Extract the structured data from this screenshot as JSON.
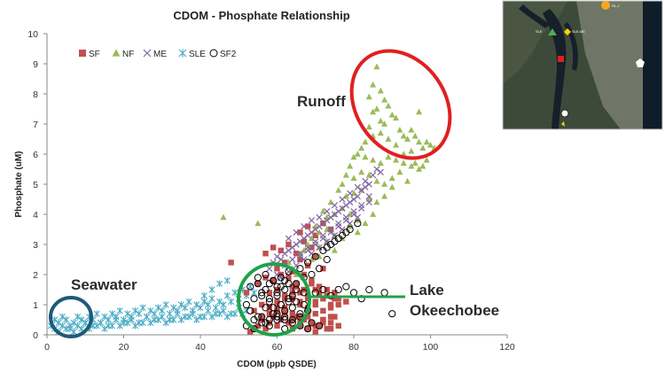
{
  "chart_data": {
    "type": "scatter",
    "title": "CDOM - Phosphate Relationship",
    "xlabel": "CDOM (ppb QSDE)",
    "ylabel": "Phosphate (uM)",
    "xlim": [
      0,
      120
    ],
    "ylim": [
      0,
      10
    ],
    "xticks": [
      "0",
      "20",
      "40",
      "60",
      "80",
      "100",
      "120"
    ],
    "yticks": [
      "0",
      "1",
      "2",
      "3",
      "4",
      "5",
      "6",
      "7",
      "8",
      "9",
      "10"
    ],
    "grid": false,
    "legend_position": "top-left",
    "colors": {
      "SF": "#c0504d",
      "NF": "#9bbb59",
      "ME": "#8064a2",
      "SLE": "#4bacc6",
      "SF2": "#000000",
      "seawater_ellipse": "#1f5a78",
      "lake_ellipse": "#1fa34a",
      "runoff_ellipse": "#e02020",
      "lake_line": "#1fa34a"
    },
    "series": [
      {
        "name": "SF",
        "marker": "square",
        "x": [
          53,
          54,
          55,
          56,
          57,
          58,
          59,
          60,
          61,
          62,
          63,
          64,
          65,
          66,
          67,
          68,
          69,
          70,
          71,
          72,
          73,
          74,
          75,
          76,
          54,
          56,
          58,
          60,
          62,
          64,
          66,
          68,
          70,
          72,
          58,
          60,
          62,
          64,
          66,
          68,
          70,
          74,
          76,
          78,
          55,
          57,
          59,
          61,
          63,
          65,
          67,
          69,
          71,
          73,
          75,
          60,
          62,
          64,
          66,
          68,
          70,
          72,
          56,
          58,
          60,
          62,
          64,
          66,
          68,
          70,
          72,
          74,
          48,
          52,
          57,
          59,
          61,
          63,
          65,
          67,
          69,
          66,
          68,
          70,
          72,
          74,
          60,
          62,
          64,
          66,
          68,
          70,
          72,
          74,
          76,
          64,
          66,
          68,
          70,
          72,
          74,
          65,
          67,
          69,
          71,
          73,
          75
        ],
        "y": [
          0.1,
          0.2,
          0.3,
          0.5,
          0.2,
          0.4,
          0.6,
          0.3,
          0.5,
          0.7,
          0.4,
          0.2,
          0.6,
          0.3,
          0.5,
          0.2,
          0.4,
          0.1,
          0.3,
          0.5,
          0.2,
          0.4,
          0.6,
          0.3,
          0.8,
          1.0,
          0.9,
          1.1,
          0.8,
          1.2,
          1.0,
          0.9,
          1.1,
          0.8,
          1.4,
          1.5,
          1.3,
          1.6,
          1.4,
          1.2,
          1.5,
          1.0,
          1.2,
          1.1,
          1.7,
          1.9,
          1.8,
          2.0,
          1.9,
          1.7,
          2.0,
          1.8,
          1.6,
          1.5,
          1.4,
          2.2,
          2.4,
          2.1,
          2.5,
          2.3,
          2.6,
          2.2,
          0.6,
          0.7,
          0.8,
          0.9,
          0.7,
          0.6,
          0.8,
          0.7,
          0.5,
          0.6,
          2.4,
          1.4,
          2.7,
          2.9,
          2.8,
          3.0,
          2.7,
          3.1,
          2.9,
          3.4,
          3.6,
          3.3,
          3.7,
          3.5,
          0.9,
          1.2,
          1.4,
          1.1,
          1.3,
          1.0,
          1.2,
          0.9,
          1.0,
          0.5,
          0.4,
          0.6,
          0.3,
          0.4,
          0.2,
          1.6,
          1.5,
          1.7,
          1.4,
          1.3,
          1.2
        ]
      },
      {
        "name": "NF",
        "marker": "triangle",
        "x": [
          86,
          85,
          87,
          84,
          88,
          89,
          86,
          90,
          91,
          88,
          85,
          87,
          84,
          92,
          93,
          94,
          95,
          96,
          97,
          98,
          99,
          100,
          101,
          97,
          95,
          93,
          91,
          89,
          87,
          85,
          83,
          82,
          81,
          83,
          85,
          87,
          89,
          91,
          93,
          95,
          97,
          99,
          80,
          79,
          78,
          80,
          82,
          84,
          86,
          88,
          90,
          92,
          94,
          96,
          98,
          77,
          76,
          78,
          80,
          82,
          84,
          86,
          88,
          90,
          74,
          72,
          73,
          75,
          77,
          79,
          81,
          83,
          85,
          70,
          71,
          73,
          75,
          77,
          79,
          81,
          68,
          69,
          71,
          73,
          75,
          66,
          67,
          69,
          71,
          46,
          55,
          63,
          64,
          65
        ],
        "y": [
          8.9,
          8.3,
          8.1,
          7.9,
          7.8,
          7.6,
          7.5,
          7.3,
          7.2,
          7.0,
          7.4,
          7.1,
          6.9,
          6.8,
          6.6,
          6.5,
          6.8,
          6.6,
          6.4,
          6.2,
          6.4,
          6.3,
          6.2,
          7.4,
          6.1,
          6.0,
          6.3,
          6.5,
          6.7,
          6.6,
          6.4,
          6.2,
          6.0,
          5.9,
          5.8,
          5.7,
          5.9,
          5.8,
          5.7,
          5.6,
          5.5,
          5.8,
          5.9,
          5.6,
          5.3,
          5.2,
          5.4,
          5.3,
          5.1,
          5.0,
          5.2,
          5.4,
          5.1,
          5.7,
          5.6,
          5.0,
          4.8,
          4.6,
          4.7,
          4.8,
          4.5,
          4.4,
          4.6,
          4.9,
          4.4,
          4.1,
          3.9,
          4.0,
          4.2,
          4.0,
          3.8,
          3.7,
          4.0,
          3.6,
          3.4,
          3.5,
          3.3,
          3.2,
          3.6,
          3.4,
          3.0,
          3.2,
          2.9,
          3.1,
          2.8,
          2.7,
          2.8,
          2.5,
          2.6,
          3.9,
          3.7,
          2.4,
          2.2,
          2.0
        ],
        "annotation": "Runoff"
      },
      {
        "name": "ME",
        "marker": "x",
        "x": [
          58,
          59,
          60,
          61,
          62,
          63,
          64,
          65,
          66,
          67,
          68,
          69,
          70,
          71,
          72,
          73,
          74,
          75,
          76,
          77,
          78,
          79,
          80,
          81,
          82,
          83,
          84,
          60,
          62,
          64,
          66,
          68,
          70,
          72,
          74,
          76,
          78,
          80,
          82,
          84,
          63,
          65,
          67,
          69,
          71,
          73,
          75,
          77,
          79,
          81,
          83,
          85,
          86,
          61,
          63,
          65,
          67,
          69,
          71,
          73,
          75,
          77,
          79,
          81,
          66,
          68,
          70,
          72,
          74,
          76,
          78,
          80,
          82,
          84,
          87
        ],
        "y": [
          2.2,
          2.4,
          2.6,
          2.5,
          2.7,
          2.8,
          2.9,
          3.0,
          3.1,
          3.2,
          3.3,
          3.4,
          3.5,
          3.6,
          3.7,
          3.8,
          3.9,
          4.0,
          4.1,
          4.2,
          4.3,
          4.4,
          4.5,
          4.6,
          4.8,
          4.9,
          5.0,
          2.0,
          2.3,
          2.5,
          2.7,
          2.9,
          3.1,
          3.3,
          3.5,
          3.7,
          3.9,
          4.1,
          4.3,
          4.6,
          3.2,
          3.4,
          3.6,
          3.8,
          3.9,
          4.1,
          4.3,
          4.5,
          4.7,
          4.9,
          5.1,
          5.3,
          5.5,
          1.9,
          2.1,
          2.3,
          2.5,
          2.7,
          2.9,
          3.1,
          3.3,
          3.5,
          3.7,
          3.9,
          2.6,
          2.8,
          3.0,
          3.2,
          3.4,
          3.6,
          3.8,
          4.0,
          4.2,
          4.4,
          5.4
        ]
      },
      {
        "name": "SLE",
        "marker": "asterisk",
        "x": [
          1,
          2,
          3,
          4,
          5,
          6,
          7,
          8,
          9,
          10,
          11,
          12,
          13,
          14,
          15,
          16,
          17,
          18,
          19,
          20,
          21,
          22,
          23,
          24,
          25,
          26,
          27,
          28,
          29,
          30,
          31,
          32,
          33,
          34,
          35,
          36,
          37,
          38,
          39,
          40,
          41,
          42,
          43,
          44,
          45,
          46,
          47,
          48,
          49,
          50,
          51,
          52,
          53,
          54,
          2,
          4,
          6,
          8,
          10,
          12,
          14,
          16,
          18,
          20,
          22,
          24,
          26,
          28,
          30,
          32,
          34,
          36,
          38,
          40,
          42,
          44,
          46,
          48,
          50,
          52,
          3,
          5,
          7,
          9,
          11,
          13,
          15,
          17,
          19,
          21,
          23,
          25,
          27,
          29,
          31,
          33,
          35,
          37,
          39,
          41,
          43,
          45,
          47,
          49,
          51,
          41,
          43,
          45,
          47
        ],
        "y": [
          0.3,
          0.5,
          0.4,
          0.6,
          0.5,
          0.3,
          0.4,
          0.6,
          0.5,
          0.4,
          0.6,
          0.5,
          0.7,
          0.4,
          0.6,
          0.5,
          0.7,
          0.6,
          0.8,
          0.5,
          0.7,
          0.6,
          0.8,
          0.7,
          0.9,
          0.6,
          0.8,
          0.7,
          0.9,
          0.8,
          1.0,
          0.7,
          0.9,
          0.8,
          1.0,
          0.9,
          1.1,
          0.8,
          1.0,
          0.9,
          1.1,
          1.0,
          1.2,
          0.9,
          1.1,
          1.0,
          1.3,
          1.1,
          1.4,
          1.2,
          1.5,
          1.3,
          1.6,
          1.4,
          0.2,
          0.3,
          0.2,
          0.3,
          0.4,
          0.3,
          0.4,
          0.3,
          0.5,
          0.4,
          0.5,
          0.4,
          0.6,
          0.5,
          0.6,
          0.5,
          0.7,
          0.6,
          0.7,
          0.6,
          0.8,
          0.7,
          0.8,
          0.7,
          0.9,
          0.8,
          0.1,
          0.2,
          0.1,
          0.2,
          0.2,
          0.3,
          0.2,
          0.3,
          0.3,
          0.4,
          0.3,
          0.4,
          0.4,
          0.5,
          0.4,
          0.5,
          0.5,
          0.6,
          0.5,
          0.6,
          0.6,
          0.7,
          0.6,
          0.7,
          0.7,
          1.3,
          1.5,
          1.7,
          1.8
        ],
        "annotation": "Seawater"
      },
      {
        "name": "SF2",
        "marker": "circle",
        "x": [
          52,
          53,
          54,
          55,
          56,
          57,
          58,
          59,
          60,
          61,
          62,
          63,
          64,
          65,
          66,
          67,
          68,
          52,
          54,
          56,
          58,
          60,
          62,
          64,
          66,
          68,
          53,
          55,
          57,
          59,
          61,
          63,
          65,
          67,
          54,
          56,
          58,
          60,
          62,
          64,
          66,
          55,
          57,
          59,
          61,
          63,
          65,
          56,
          58,
          60,
          62,
          64,
          57,
          59,
          61,
          63,
          58,
          60,
          62,
          70,
          72,
          74,
          76,
          78,
          80,
          82,
          84,
          88,
          90,
          66,
          68,
          70,
          72,
          74,
          76,
          78,
          73,
          75,
          77,
          79,
          81,
          69,
          71,
          73,
          67,
          69,
          71,
          60,
          62
        ],
        "y": [
          1.0,
          0.8,
          1.2,
          0.6,
          1.4,
          0.9,
          1.1,
          0.7,
          1.3,
          1.0,
          0.8,
          1.2,
          0.9,
          1.1,
          0.7,
          1.0,
          0.8,
          0.3,
          0.2,
          0.4,
          0.3,
          0.5,
          0.2,
          0.4,
          0.3,
          0.2,
          1.6,
          1.7,
          1.5,
          1.8,
          1.6,
          1.7,
          1.5,
          1.4,
          0.5,
          0.6,
          0.5,
          0.7,
          0.6,
          0.5,
          0.6,
          1.9,
          2.0,
          1.8,
          1.9,
          2.1,
          1.7,
          1.3,
          1.2,
          1.4,
          1.5,
          1.3,
          0.4,
          0.9,
          1.0,
          1.1,
          1.7,
          1.6,
          1.8,
          1.4,
          1.5,
          1.3,
          1.5,
          1.6,
          1.4,
          1.2,
          1.5,
          1.4,
          0.7,
          2.2,
          2.4,
          2.6,
          2.8,
          3.0,
          3.2,
          3.4,
          2.9,
          3.1,
          3.3,
          3.5,
          3.7,
          2.0,
          2.2,
          2.5,
          1.9,
          0.4,
          0.3,
          0.6,
          0.5
        ],
        "annotation": "Lake Okeechobee"
      }
    ],
    "annotations": [
      {
        "text": "Runoff",
        "x": 66,
        "y": 7.7
      },
      {
        "text": "Seawater",
        "x": 7,
        "y": 1.6
      },
      {
        "text": "Lake",
        "x": 95,
        "y": 1.5
      },
      {
        "text": "Okeechobee",
        "x": 95,
        "y": 0.9
      }
    ],
    "inset_map": {
      "markers": [
        {
          "label": "SLE",
          "color": "#4caf50",
          "shape": "triangle"
        },
        {
          "label": "SLE-ME",
          "color": "#ffd400",
          "shape": "diamond"
        },
        {
          "label": "SF",
          "color": "#e02020",
          "shape": "square"
        },
        {
          "label": "RL-J",
          "color": "#f5a623",
          "shape": "circle"
        },
        {
          "label": "",
          "color": "#ffffff",
          "shape": "pentagon"
        },
        {
          "label": "",
          "color": "#ffffff",
          "shape": "circle"
        }
      ]
    }
  }
}
